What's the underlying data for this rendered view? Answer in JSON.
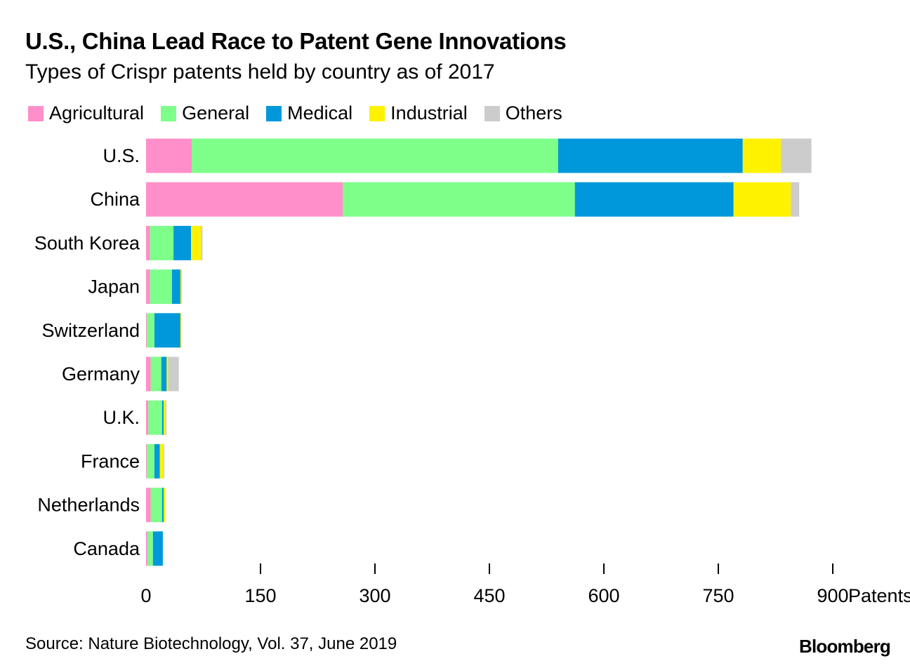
{
  "header": {
    "title": "U.S., China Lead Race to Patent Gene Innovations",
    "subtitle": "Types of Crispr patents held by country as of 2017"
  },
  "footer": {
    "source": "Source: Nature Biotechnology, Vol. 37, June 2019",
    "brand": "Bloomberg"
  },
  "chart_data": {
    "type": "bar",
    "orientation": "horizontal",
    "stacked": true,
    "title": "U.S., China Lead Race to Patent Gene Innovations",
    "subtitle": "Types of Crispr patents held by country as of 2017",
    "xlabel": "Patents",
    "ylabel": "",
    "xlim": [
      0,
      900
    ],
    "xticks": [
      0,
      150,
      300,
      450,
      600,
      750,
      900
    ],
    "xtick_labels": [
      "0",
      "150",
      "300",
      "450",
      "600",
      "750",
      "900"
    ],
    "x_unit_label": "Patents",
    "grid": false,
    "legend_position": "top-left",
    "categories": [
      "U.S.",
      "China",
      "South Korea",
      "Japan",
      "Switzerland",
      "Germany",
      "U.K.",
      "France",
      "Netherlands",
      "Canada"
    ],
    "series": [
      {
        "name": "Agricultural",
        "color": "#ff8fca",
        "values": [
          60,
          258,
          5,
          5,
          1,
          6,
          3,
          1,
          6,
          2
        ]
      },
      {
        "name": "General",
        "color": "#7dff8a",
        "values": [
          480,
          304,
          31,
          29,
          10,
          14,
          18,
          10,
          15,
          7
        ]
      },
      {
        "name": "Medical",
        "color": "#0098db",
        "values": [
          242,
          208,
          23,
          11,
          34,
          7,
          2,
          7,
          2,
          13
        ]
      },
      {
        "name": "Industrial",
        "color": "#fff200",
        "values": [
          50,
          75,
          13,
          1,
          1,
          2,
          3,
          5,
          2,
          0
        ]
      },
      {
        "name": "Others",
        "color": "#cccccc",
        "values": [
          40,
          11,
          2,
          1,
          0,
          14,
          1,
          1,
          0,
          0
        ]
      }
    ]
  }
}
